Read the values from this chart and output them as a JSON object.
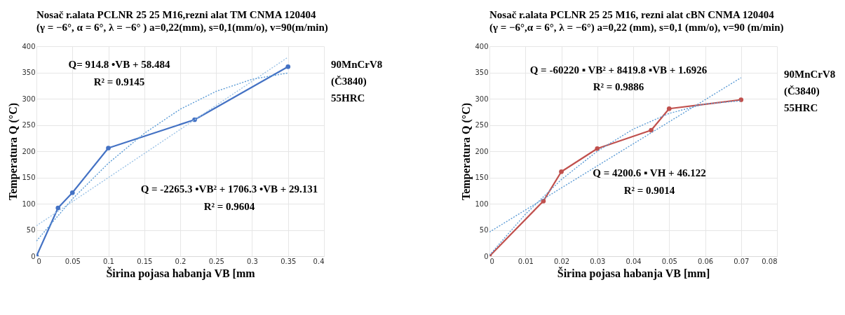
{
  "chart_data": [
    {
      "type": "line",
      "title": "Nosač r.alata PCLNR 25 25 M16,rezni alat TM CNMA 120404",
      "subtitle": "(γ = −6°, α = 6°, λ = −6° ) a=0,22(mm), s=0,1(mm/o), v=90(m/min)",
      "xlabel": "Širina pojasa habanja VB [mm",
      "ylabel": "Temperatura  Q (°C)",
      "x": [
        0,
        0.03,
        0.05,
        0.1,
        0.22,
        0.35
      ],
      "series": [
        {
          "color": "#4472c4",
          "values": [
            0,
            92,
            121,
            206,
            260,
            361
          ],
          "marker": "circle"
        },
        {
          "type": "line",
          "color": "#9dc3e6",
          "line_style": "dotted",
          "marker": "none",
          "x": [
            0,
            0.35
          ],
          "values": [
            58,
            379
          ]
        },
        {
          "type": "line",
          "color": "#5b9bd5",
          "line_style": "dotted",
          "marker": "none",
          "x": [
            0,
            0.05,
            0.1,
            0.15,
            0.2,
            0.25,
            0.3,
            0.35
          ],
          "values": [
            29,
            109,
            177,
            234,
            280,
            314,
            337,
            349
          ]
        }
      ],
      "xlim": [
        0,
        0.4
      ],
      "xticks": [
        0,
        0.05,
        0.1,
        0.15,
        0.2,
        0.25,
        0.3,
        0.35,
        0.4
      ],
      "ylim": [
        0,
        400
      ],
      "yticks": [
        0,
        50,
        100,
        150,
        200,
        250,
        300,
        350,
        400
      ],
      "grid": true,
      "annotations": [
        "Q= 914.8 •VB + 58.484",
        "R² = 0.9145",
        "Q = -2265.3 •VB² + 1706.3 •VB + 29.131",
        "R² = 0.9604",
        "90MnCrV8",
        "(Č3840)",
        "55HRC"
      ]
    },
    {
      "type": "line",
      "title": "Nosač r.alata PCLNR 25 25 M16, rezni alat cBN  CNMA 120404",
      "subtitle": "(γ = −6°,α = 6°, λ = −6°) a=0,22 (mm), s=0,1 (mm/o), v=90 (m/min)",
      "xlabel": "Širina pojasa habanja VB [mm]",
      "ylabel": "Temperatura  Q (°C)",
      "x": [
        0,
        0.015,
        0.02,
        0.03,
        0.045,
        0.05,
        0.07
      ],
      "series": [
        {
          "color": "#c0504d",
          "values": [
            0,
            105,
            161,
            205,
            240,
            281,
            298
          ],
          "marker": "circle"
        },
        {
          "type": "line",
          "color": "#5b9bd5",
          "line_style": "dotted",
          "marker": "none",
          "x": [
            0,
            0.07
          ],
          "values": [
            46,
            340
          ]
        },
        {
          "type": "line",
          "color": "#5b9bd5",
          "line_style": "dotted",
          "marker": "none",
          "x": [
            0,
            0.01,
            0.02,
            0.03,
            0.04,
            0.05,
            0.06,
            0.07
          ],
          "values": [
            2,
            80,
            146,
            200,
            242,
            272,
            290,
            296
          ]
        }
      ],
      "xlim": [
        0,
        0.08
      ],
      "xticks": [
        0,
        0.01,
        0.02,
        0.03,
        0.04,
        0.05,
        0.06,
        0.07,
        0.08
      ],
      "ylim": [
        0,
        400
      ],
      "yticks": [
        0,
        50,
        100,
        150,
        200,
        250,
        300,
        350,
        400
      ],
      "grid": true,
      "annotations": [
        "Q = -60220 ▪ VB² + 8419.8 ▪VB + 1.6926",
        "R² = 0.9886",
        "Q = 4200.6 ▪ VH + 46.122",
        "R² = 0.9014",
        "90MnCrV8",
        "(Č3840)",
        "55HRC"
      ]
    }
  ]
}
